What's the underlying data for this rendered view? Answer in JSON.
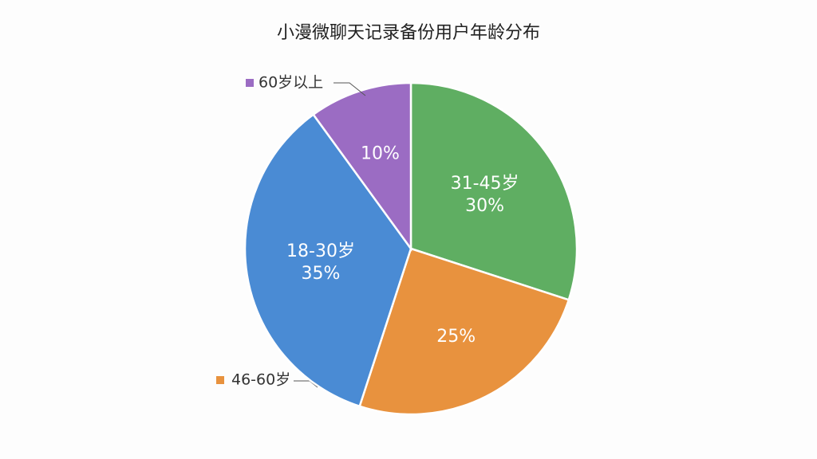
{
  "chart_data": {
    "type": "pie",
    "title": "小漫微聊天记录备份用户年龄分布",
    "categories": [
      "31-45岁",
      "46-60岁",
      "18-30岁",
      "60岁以上"
    ],
    "values": [
      30,
      25,
      35,
      10
    ],
    "value_labels": [
      "30%",
      "25%",
      "35%",
      "10%"
    ],
    "colors": [
      "#5fae62",
      "#e8923e",
      "#4a8bd4",
      "#9b6cc3"
    ]
  }
}
